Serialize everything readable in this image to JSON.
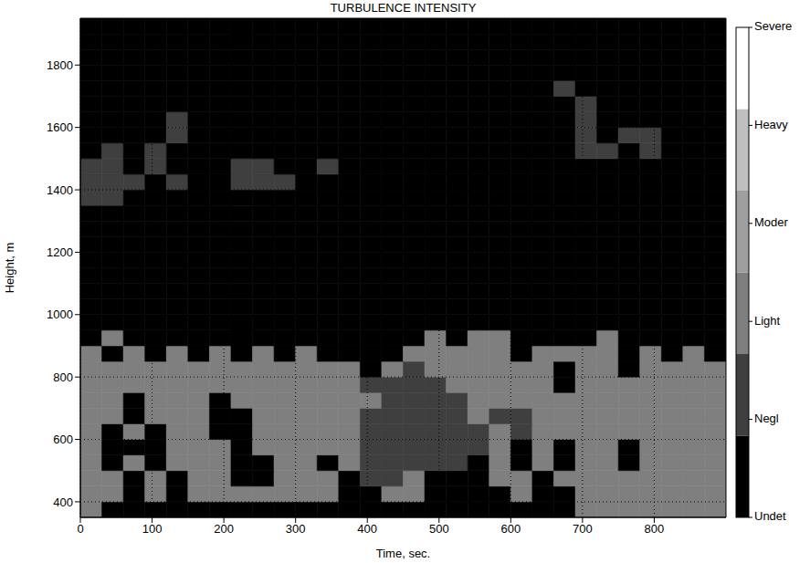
{
  "chart_data": {
    "type": "heatmap",
    "title": "TURBULENCE INTENSITY",
    "x_label": "Time, sec.",
    "y_label": "Height, m",
    "xlim": [
      0,
      900
    ],
    "xticks": [
      0,
      100,
      200,
      300,
      400,
      500,
      600,
      700,
      800
    ],
    "ylim": [
      350,
      1950
    ],
    "yticks": [
      400,
      600,
      800,
      1000,
      1200,
      1400,
      1600,
      1800
    ],
    "grid": true,
    "x_bins": [
      0,
      30,
      60,
      90,
      120,
      150,
      180,
      210,
      240,
      270,
      300,
      330,
      360,
      390,
      420,
      450,
      480,
      510,
      540,
      570,
      600,
      630,
      660,
      690,
      720,
      750,
      780,
      810,
      840,
      870,
      900
    ],
    "y_bins": [
      350,
      400,
      450,
      500,
      550,
      600,
      650,
      700,
      750,
      800,
      850,
      900,
      950,
      1000,
      1050,
      1100,
      1150,
      1200,
      1250,
      1300,
      1350,
      1400,
      1450,
      1500,
      1550,
      1600,
      1650,
      1700,
      1750,
      1800,
      1850,
      1900,
      1950
    ],
    "cells": [
      [
        2,
        0,
        0,
        0,
        0,
        0,
        0,
        0,
        0,
        0,
        0,
        0,
        0,
        0,
        0,
        0,
        0,
        0,
        0,
        0,
        0,
        0,
        0,
        2,
        2,
        2,
        2,
        2,
        2,
        2
      ],
      [
        2,
        2,
        0,
        2,
        0,
        2,
        2,
        2,
        2,
        2,
        2,
        2,
        0,
        0,
        2,
        2,
        0,
        0,
        0,
        0,
        2,
        0,
        0,
        2,
        2,
        2,
        2,
        2,
        2,
        2
      ],
      [
        2,
        2,
        0,
        2,
        0,
        2,
        2,
        0,
        0,
        2,
        2,
        2,
        0,
        1,
        1,
        2,
        0,
        0,
        0,
        2,
        2,
        0,
        2,
        2,
        2,
        2,
        2,
        2,
        2,
        2
      ],
      [
        2,
        0,
        2,
        0,
        2,
        2,
        2,
        0,
        0,
        2,
        2,
        0,
        2,
        1,
        1,
        1,
        1,
        1,
        0,
        2,
        0,
        2,
        0,
        2,
        2,
        0,
        2,
        2,
        2,
        2
      ],
      [
        2,
        0,
        0,
        0,
        2,
        2,
        2,
        0,
        2,
        2,
        2,
        2,
        2,
        1,
        1,
        1,
        1,
        1,
        1,
        2,
        0,
        2,
        0,
        2,
        2,
        0,
        2,
        2,
        2,
        2
      ],
      [
        2,
        0,
        2,
        0,
        2,
        2,
        0,
        0,
        2,
        2,
        2,
        2,
        2,
        1,
        1,
        1,
        1,
        1,
        1,
        2,
        1,
        2,
        2,
        2,
        2,
        2,
        2,
        2,
        2,
        2
      ],
      [
        2,
        2,
        0,
        2,
        2,
        2,
        0,
        0,
        2,
        2,
        2,
        2,
        2,
        1,
        1,
        1,
        1,
        1,
        2,
        1,
        1,
        2,
        2,
        2,
        2,
        2,
        2,
        2,
        2,
        2
      ],
      [
        2,
        2,
        0,
        2,
        2,
        2,
        0,
        2,
        2,
        2,
        2,
        2,
        2,
        2,
        1,
        1,
        1,
        1,
        2,
        2,
        2,
        2,
        2,
        2,
        2,
        2,
        2,
        2,
        2,
        2
      ],
      [
        2,
        2,
        2,
        2,
        2,
        2,
        2,
        2,
        2,
        2,
        2,
        2,
        2,
        1,
        1,
        1,
        1,
        2,
        2,
        2,
        2,
        2,
        0,
        2,
        2,
        2,
        2,
        2,
        2,
        2
      ],
      [
        2,
        2,
        2,
        2,
        2,
        2,
        2,
        2,
        2,
        2,
        2,
        2,
        2,
        0,
        2,
        1,
        2,
        2,
        2,
        2,
        2,
        2,
        0,
        2,
        2,
        0,
        2,
        2,
        2,
        2
      ],
      [
        2,
        0,
        2,
        0,
        2,
        0,
        2,
        0,
        2,
        0,
        2,
        0,
        0,
        0,
        0,
        2,
        2,
        2,
        2,
        2,
        0,
        2,
        2,
        2,
        2,
        0,
        2,
        0,
        2,
        0
      ],
      [
        0,
        2,
        0,
        0,
        0,
        0,
        0,
        0,
        0,
        0,
        0,
        0,
        0,
        0,
        0,
        0,
        2,
        0,
        2,
        2,
        0,
        0,
        0,
        0,
        2,
        0,
        0,
        0,
        0,
        0
      ],
      [
        0,
        0,
        0,
        0,
        0,
        0,
        0,
        0,
        0,
        0,
        0,
        0,
        0,
        0,
        0,
        0,
        0,
        0,
        0,
        0,
        0,
        0,
        0,
        0,
        0,
        0,
        0,
        0,
        0,
        0
      ],
      [
        0,
        0,
        0,
        0,
        0,
        0,
        0,
        0,
        0,
        0,
        0,
        0,
        0,
        0,
        0,
        0,
        0,
        0,
        0,
        0,
        0,
        0,
        0,
        0,
        0,
        0,
        0,
        0,
        0,
        0
      ],
      [
        0,
        0,
        0,
        0,
        0,
        0,
        0,
        0,
        0,
        0,
        0,
        0,
        0,
        0,
        0,
        0,
        0,
        0,
        0,
        0,
        0,
        0,
        0,
        0,
        0,
        0,
        0,
        0,
        0,
        0
      ],
      [
        0,
        0,
        0,
        0,
        0,
        0,
        0,
        0,
        0,
        0,
        0,
        0,
        0,
        0,
        0,
        0,
        0,
        0,
        0,
        0,
        0,
        0,
        0,
        0,
        0,
        0,
        0,
        0,
        0,
        0
      ],
      [
        0,
        0,
        0,
        0,
        0,
        0,
        0,
        0,
        0,
        0,
        0,
        0,
        0,
        0,
        0,
        0,
        0,
        0,
        0,
        0,
        0,
        0,
        0,
        0,
        0,
        0,
        0,
        0,
        0,
        0
      ],
      [
        0,
        0,
        0,
        0,
        0,
        0,
        0,
        0,
        0,
        0,
        0,
        0,
        0,
        0,
        0,
        0,
        0,
        0,
        0,
        0,
        0,
        0,
        0,
        0,
        0,
        0,
        0,
        0,
        0,
        0
      ],
      [
        0,
        0,
        0,
        0,
        0,
        0,
        0,
        0,
        0,
        0,
        0,
        0,
        0,
        0,
        0,
        0,
        0,
        0,
        0,
        0,
        0,
        0,
        0,
        0,
        0,
        0,
        0,
        0,
        0,
        0
      ],
      [
        0,
        0,
        0,
        0,
        0,
        0,
        0,
        0,
        0,
        0,
        0,
        0,
        0,
        0,
        0,
        0,
        0,
        0,
        0,
        0,
        0,
        0,
        0,
        0,
        0,
        0,
        0,
        0,
        0,
        0
      ],
      [
        1,
        1,
        0,
        0,
        0,
        0,
        0,
        0,
        0,
        0,
        0,
        0,
        0,
        0,
        0,
        0,
        0,
        0,
        0,
        0,
        0,
        0,
        0,
        0,
        0,
        0,
        0,
        0,
        0,
        0
      ],
      [
        1,
        1,
        1,
        0,
        1,
        0,
        0,
        1,
        1,
        1,
        0,
        0,
        0,
        0,
        0,
        0,
        0,
        0,
        0,
        0,
        0,
        0,
        0,
        0,
        0,
        0,
        0,
        0,
        0,
        0
      ],
      [
        1,
        1,
        0,
        1,
        0,
        0,
        0,
        1,
        1,
        0,
        0,
        1,
        0,
        0,
        0,
        0,
        0,
        0,
        0,
        0,
        0,
        0,
        0,
        0,
        0,
        0,
        0,
        0,
        0,
        0
      ],
      [
        0,
        1,
        0,
        1,
        0,
        0,
        0,
        0,
        0,
        0,
        0,
        0,
        0,
        0,
        0,
        0,
        0,
        0,
        0,
        0,
        0,
        0,
        0,
        1,
        1,
        0,
        1,
        0,
        0,
        0
      ],
      [
        0,
        0,
        0,
        0,
        1,
        0,
        0,
        0,
        0,
        0,
        0,
        0,
        0,
        0,
        0,
        0,
        0,
        0,
        0,
        0,
        0,
        0,
        0,
        1,
        0,
        1,
        1,
        0,
        0,
        0
      ],
      [
        0,
        0,
        0,
        0,
        1,
        0,
        0,
        0,
        0,
        0,
        0,
        0,
        0,
        0,
        0,
        0,
        0,
        0,
        0,
        0,
        0,
        0,
        0,
        1,
        0,
        0,
        0,
        0,
        0,
        0
      ],
      [
        0,
        0,
        0,
        0,
        0,
        0,
        0,
        0,
        0,
        0,
        0,
        0,
        0,
        0,
        0,
        0,
        0,
        0,
        0,
        0,
        0,
        0,
        0,
        1,
        0,
        0,
        0,
        0,
        0,
        0
      ],
      [
        0,
        0,
        0,
        0,
        0,
        0,
        0,
        0,
        0,
        0,
        0,
        0,
        0,
        0,
        0,
        0,
        0,
        0,
        0,
        0,
        0,
        0,
        1,
        0,
        0,
        0,
        0,
        0,
        0,
        0
      ],
      [
        0,
        0,
        0,
        0,
        0,
        0,
        0,
        0,
        0,
        0,
        0,
        0,
        0,
        0,
        0,
        0,
        0,
        0,
        0,
        0,
        0,
        0,
        0,
        0,
        0,
        0,
        0,
        0,
        0,
        0
      ],
      [
        0,
        0,
        0,
        0,
        0,
        0,
        0,
        0,
        0,
        0,
        0,
        0,
        0,
        0,
        0,
        0,
        0,
        0,
        0,
        0,
        0,
        0,
        0,
        0,
        0,
        0,
        0,
        0,
        0,
        0
      ],
      [
        0,
        0,
        0,
        0,
        0,
        0,
        0,
        0,
        0,
        0,
        0,
        0,
        0,
        0,
        0,
        0,
        0,
        0,
        0,
        0,
        0,
        0,
        0,
        0,
        0,
        0,
        0,
        0,
        0,
        0
      ],
      [
        0,
        0,
        0,
        0,
        0,
        0,
        0,
        0,
        0,
        0,
        0,
        0,
        0,
        0,
        0,
        0,
        0,
        0,
        0,
        0,
        0,
        0,
        0,
        0,
        0,
        0,
        0,
        0,
        0,
        0
      ]
    ],
    "colorbar": {
      "range": [
        0,
        5
      ],
      "ticks": [
        {
          "value": 0,
          "label": "Undet"
        },
        {
          "value": 1,
          "label": "Negl"
        },
        {
          "value": 2,
          "label": "Light"
        },
        {
          "value": 3,
          "label": "Moder"
        },
        {
          "value": 4,
          "label": "Heavy"
        },
        {
          "value": 5,
          "label": "Severe"
        }
      ],
      "colors": [
        "#000000",
        "#3f3f3f",
        "#7f7f7f",
        "#9f9f9f",
        "#bfbfbf",
        "#ffffff"
      ]
    }
  }
}
